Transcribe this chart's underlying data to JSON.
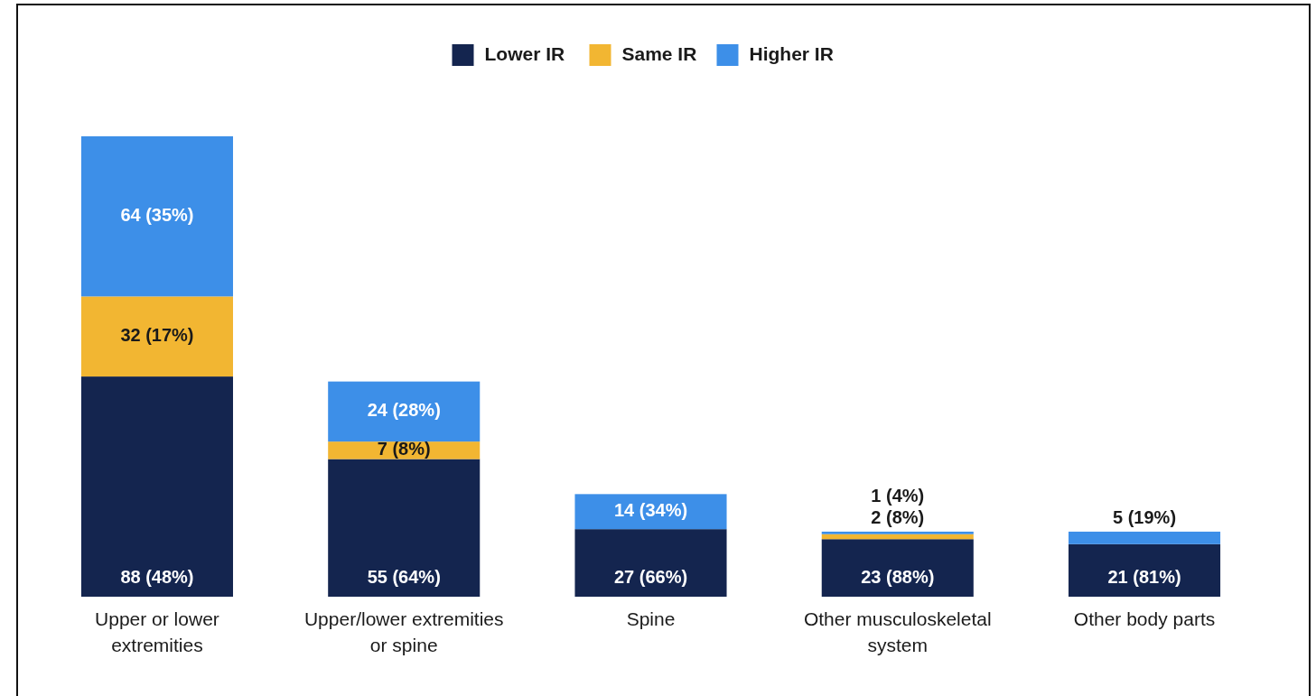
{
  "chart_data": {
    "type": "bar",
    "stacked": true,
    "legend": "top",
    "categories": [
      "Upper or lower extremities",
      "Upper/lower extremities or spine",
      "Spine",
      "Other musculoskeletal system",
      "Other body parts"
    ],
    "series": [
      {
        "name": "Lower IR",
        "color": "#14254f",
        "values": [
          88,
          55,
          27,
          23,
          21
        ],
        "value_labels": [
          "88 (48%)",
          "55 (64%)",
          "27 (66%)",
          "23 (88%)",
          "21 (81%)"
        ]
      },
      {
        "name": "Same IR",
        "color": "#f2b632",
        "values": [
          32,
          7,
          0,
          2,
          0
        ],
        "value_labels": [
          "32 (17%)",
          "7 (8%)",
          null,
          "2 (8%)",
          null
        ]
      },
      {
        "name": "Higher IR",
        "color": "#3d8fe8",
        "values": [
          64,
          24,
          14,
          1,
          5
        ],
        "value_labels": [
          "64 (35%)",
          "24 (28%)",
          "14 (34%)",
          "1 (4%)",
          "5 (19%)"
        ]
      }
    ]
  }
}
